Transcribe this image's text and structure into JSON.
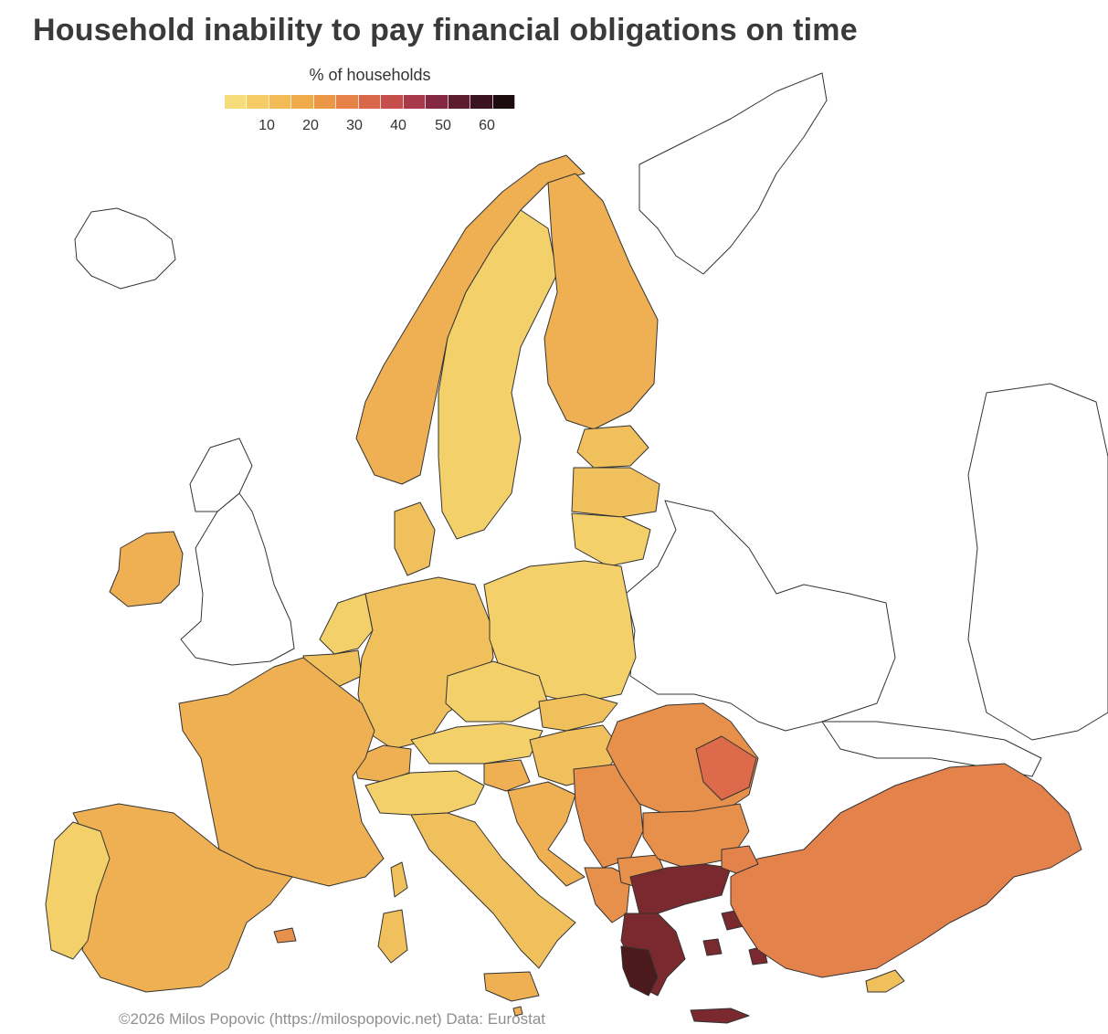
{
  "title": "Household inability to pay financial obligations on time",
  "legend": {
    "title": "% of households",
    "ticks": [
      "10",
      "20",
      "30",
      "40",
      "50",
      "60"
    ],
    "colors": [
      "#f7dc7c",
      "#f5cc65",
      "#f2bb55",
      "#efaa4a",
      "#ec9746",
      "#e68147",
      "#d9674a",
      "#c54e4c",
      "#a8394a",
      "#852842",
      "#5e1c30",
      "#3b1320",
      "#1c0b0f"
    ]
  },
  "credit": "©2026 Milos Popovic (https://milospopovic.net) Data: Eurostat",
  "colors": {
    "low": "#f3d06a",
    "lowmid": "#f0c05c",
    "mid": "#eeb052",
    "midhigh": "#eba04d",
    "orange": "#e7904b",
    "turkey": "#e4824b",
    "red": "#dc6a4b",
    "greece_dark": "#7a2a2e",
    "greece_darker": "#4a1a1c",
    "outline": "#333333"
  }
}
